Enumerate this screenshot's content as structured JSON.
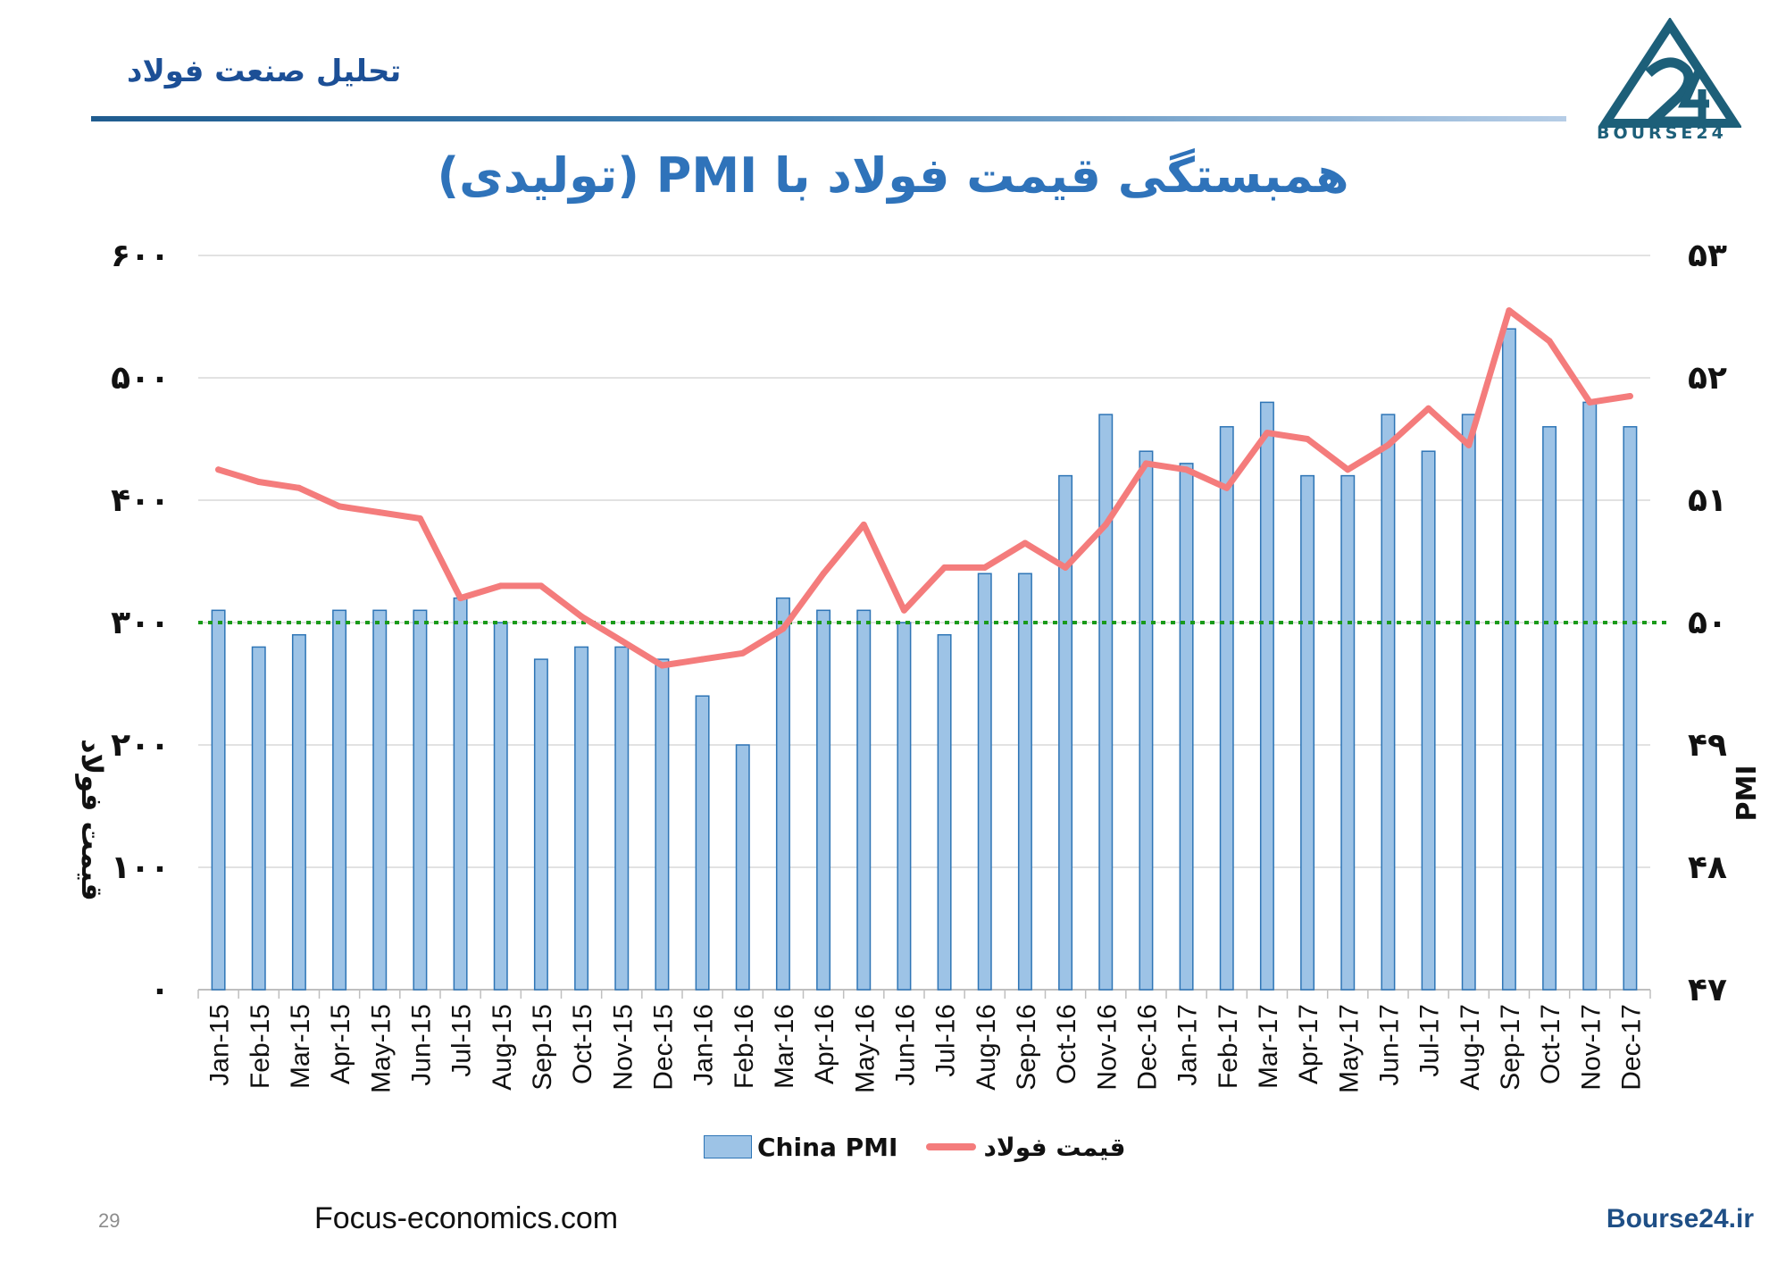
{
  "header": {
    "brand_text": "تحلیل صنعت فولاد",
    "logo_text": "BOURSE24"
  },
  "title": "همبستگی قیمت فولاد با PMI (تولیدی)",
  "footer": {
    "page_number": "29",
    "source": "Focus-economics.com",
    "site": "Bourse24.ir"
  },
  "colors": {
    "bar_fill": "#9dc3e6",
    "bar_stroke": "#2e75b6",
    "line": "#f47c7c",
    "reference": "#1a9a1a",
    "grid": "#d9d9d9",
    "title": "#2f73ba"
  },
  "chart_data": {
    "type": "bar+line",
    "categories": [
      "Jan-15",
      "Feb-15",
      "Mar-15",
      "Apr-15",
      "May-15",
      "Jun-15",
      "Jul-15",
      "Aug-15",
      "Sep-15",
      "Oct-15",
      "Nov-15",
      "Dec-15",
      "Jan-16",
      "Feb-16",
      "Mar-16",
      "Apr-16",
      "May-16",
      "Jun-16",
      "Jul-16",
      "Aug-16",
      "Sep-16",
      "Oct-16",
      "Nov-16",
      "Dec-16",
      "Jan-17",
      "Feb-17",
      "Mar-17",
      "Apr-17",
      "May-17",
      "Jun-17",
      "Jul-17",
      "Aug-17",
      "Sep-17",
      "Oct-17",
      "Nov-17",
      "Dec-17"
    ],
    "series": [
      {
        "name": "China PMI",
        "type": "bar",
        "axis": "right",
        "values": [
          50.1,
          49.8,
          49.9,
          50.1,
          50.1,
          50.1,
          50.2,
          50.0,
          49.7,
          49.8,
          49.8,
          49.7,
          49.4,
          49.0,
          50.2,
          50.1,
          50.1,
          50.0,
          49.9,
          50.4,
          50.4,
          51.2,
          51.7,
          51.4,
          51.3,
          51.6,
          51.8,
          51.2,
          51.2,
          51.7,
          51.4,
          51.7,
          52.4,
          51.6,
          51.8,
          51.6
        ]
      },
      {
        "name": "قیمت فولاد",
        "type": "line",
        "axis": "left",
        "values": [
          425,
          415,
          410,
          395,
          390,
          385,
          320,
          330,
          330,
          305,
          285,
          265,
          270,
          275,
          295,
          340,
          380,
          310,
          345,
          345,
          365,
          345,
          380,
          430,
          425,
          410,
          455,
          450,
          425,
          445,
          475,
          445,
          555,
          530,
          480,
          485
        ]
      }
    ],
    "y_left": {
      "label": "قیمت فولاد",
      "ylim": [
        0,
        600
      ],
      "ticks": [
        "۰",
        "۱۰۰",
        "۲۰۰",
        "۳۰۰",
        "۴۰۰",
        "۵۰۰",
        "۶۰۰"
      ]
    },
    "y_right": {
      "label": "PMI",
      "ylim": [
        47,
        53
      ],
      "ticks": [
        "۴۷",
        "۴۸",
        "۴۹",
        "۵۰",
        "۵۱",
        "۵۲",
        "۵۳"
      ]
    },
    "reference_line": {
      "value_right_axis": 50,
      "style": "dotted",
      "color": "#1a9a1a"
    },
    "grid": true,
    "legend": {
      "position": "bottom",
      "entries": [
        "China PMI",
        "قیمت فولاد"
      ]
    }
  }
}
